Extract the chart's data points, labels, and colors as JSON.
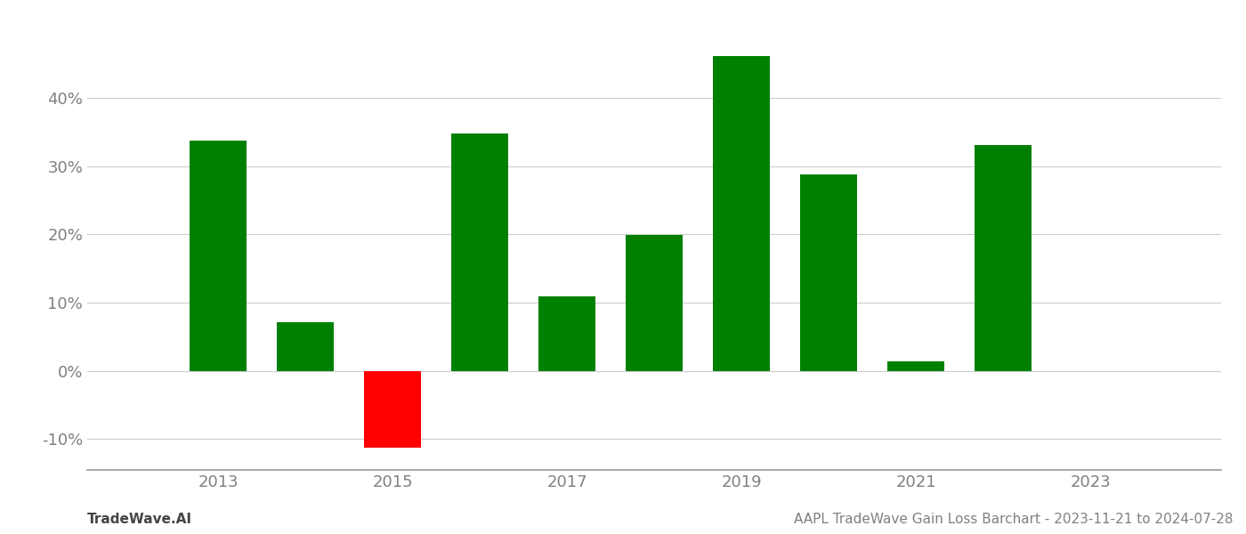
{
  "years": [
    2013,
    2014,
    2015,
    2016,
    2017,
    2018,
    2019,
    2020,
    2021,
    2022
  ],
  "values": [
    0.338,
    0.071,
    -0.112,
    0.348,
    0.109,
    0.199,
    0.461,
    0.288,
    0.014,
    0.331
  ],
  "colors": [
    "#008000",
    "#008000",
    "#ff0000",
    "#008000",
    "#008000",
    "#008000",
    "#008000",
    "#008000",
    "#008000",
    "#008000"
  ],
  "bar_width": 0.65,
  "ylim": [
    -0.145,
    0.52
  ],
  "yticks": [
    -0.1,
    0.0,
    0.1,
    0.2,
    0.3,
    0.4
  ],
  "xticks": [
    2013,
    2015,
    2017,
    2019,
    2021,
    2023
  ],
  "xlim": [
    2011.5,
    2024.5
  ],
  "xlabel": "",
  "ylabel": "",
  "title": "",
  "footer_left": "TradeWave.AI",
  "footer_right": "AAPL TradeWave Gain Loss Barchart - 2023-11-21 to 2024-07-28",
  "background_color": "#ffffff",
  "grid_color": "#cccccc",
  "tick_color": "#808080",
  "bar_edge_color": "none",
  "footer_fontsize": 11,
  "tick_fontsize": 13
}
